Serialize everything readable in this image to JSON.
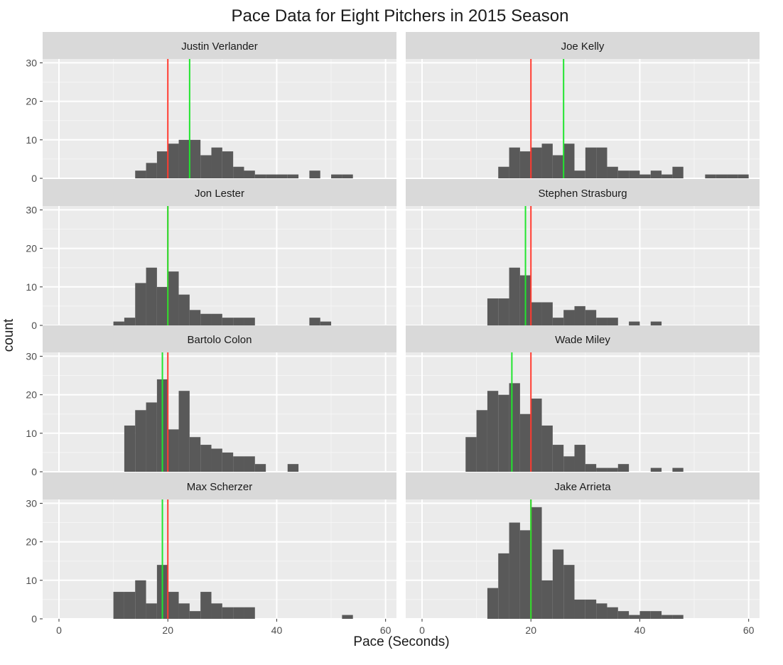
{
  "chart_data": {
    "type": "histogram",
    "title": "Pace Data for Eight Pitchers in 2015 Season",
    "xlabel": "Pace (Seconds)",
    "ylabel": "count",
    "xlim": [
      -3,
      62
    ],
    "ylim": [
      0,
      31
    ],
    "x_ticks": [
      0,
      20,
      40,
      60
    ],
    "y_ticks": [
      0,
      10,
      20,
      30
    ],
    "bin_width": 2,
    "line_colors": {
      "red": "#ff3b30",
      "green": "#22e52f"
    },
    "bar_color": "#595959",
    "facets": [
      {
        "name": "Justin Verlander",
        "red_line": 20,
        "green_line": 24,
        "bins": [
          [
            14,
            2
          ],
          [
            16,
            4
          ],
          [
            18,
            7
          ],
          [
            20,
            9
          ],
          [
            22,
            10
          ],
          [
            24,
            10
          ],
          [
            26,
            6
          ],
          [
            28,
            8
          ],
          [
            30,
            7
          ],
          [
            32,
            3
          ],
          [
            34,
            2
          ],
          [
            36,
            1
          ],
          [
            38,
            1
          ],
          [
            40,
            1
          ],
          [
            42,
            1
          ],
          [
            46,
            2
          ],
          [
            50,
            1
          ],
          [
            52,
            1
          ]
        ]
      },
      {
        "name": "Joe Kelly",
        "red_line": 20,
        "green_line": 26,
        "bins": [
          [
            14,
            3
          ],
          [
            16,
            8
          ],
          [
            18,
            7
          ],
          [
            20,
            8
          ],
          [
            22,
            9
          ],
          [
            24,
            6
          ],
          [
            26,
            9
          ],
          [
            28,
            2
          ],
          [
            30,
            8
          ],
          [
            32,
            8
          ],
          [
            34,
            3
          ],
          [
            36,
            2
          ],
          [
            38,
            2
          ],
          [
            40,
            1
          ],
          [
            42,
            2
          ],
          [
            44,
            1
          ],
          [
            46,
            3
          ],
          [
            52,
            1
          ],
          [
            54,
            1
          ],
          [
            56,
            1
          ],
          [
            58,
            1
          ]
        ]
      },
      {
        "name": "Jon Lester",
        "red_line": 20,
        "green_line": 20,
        "bins": [
          [
            10,
            1
          ],
          [
            12,
            2
          ],
          [
            14,
            11
          ],
          [
            16,
            15
          ],
          [
            18,
            10
          ],
          [
            20,
            14
          ],
          [
            22,
            8
          ],
          [
            24,
            4
          ],
          [
            26,
            3
          ],
          [
            28,
            3
          ],
          [
            30,
            2
          ],
          [
            32,
            2
          ],
          [
            34,
            2
          ],
          [
            46,
            2
          ],
          [
            48,
            1
          ]
        ]
      },
      {
        "name": "Stephen Strasburg",
        "red_line": 20,
        "green_line": 19,
        "bins": [
          [
            12,
            7
          ],
          [
            14,
            7
          ],
          [
            16,
            15
          ],
          [
            18,
            13
          ],
          [
            20,
            6
          ],
          [
            22,
            6
          ],
          [
            24,
            2
          ],
          [
            26,
            4
          ],
          [
            28,
            5
          ],
          [
            30,
            4
          ],
          [
            32,
            2
          ],
          [
            34,
            2
          ],
          [
            38,
            1
          ],
          [
            42,
            1
          ]
        ]
      },
      {
        "name": "Bartolo Colon",
        "red_line": 20,
        "green_line": 19,
        "bins": [
          [
            12,
            12
          ],
          [
            14,
            16
          ],
          [
            16,
            18
          ],
          [
            18,
            24
          ],
          [
            20,
            11
          ],
          [
            22,
            21
          ],
          [
            24,
            9
          ],
          [
            26,
            7
          ],
          [
            28,
            6
          ],
          [
            30,
            5
          ],
          [
            32,
            4
          ],
          [
            34,
            4
          ],
          [
            36,
            2
          ],
          [
            42,
            2
          ]
        ]
      },
      {
        "name": "Wade Miley",
        "red_line": 20,
        "green_line": 16.5,
        "bins": [
          [
            8,
            9
          ],
          [
            10,
            16
          ],
          [
            12,
            21
          ],
          [
            14,
            20
          ],
          [
            16,
            23
          ],
          [
            18,
            15
          ],
          [
            20,
            19
          ],
          [
            22,
            12
          ],
          [
            24,
            7
          ],
          [
            26,
            4
          ],
          [
            28,
            7
          ],
          [
            30,
            2
          ],
          [
            32,
            1
          ],
          [
            34,
            1
          ],
          [
            36,
            2
          ],
          [
            42,
            1
          ],
          [
            46,
            1
          ]
        ]
      },
      {
        "name": "Max Scherzer",
        "red_line": 20,
        "green_line": 19,
        "bins": [
          [
            10,
            7
          ],
          [
            12,
            7
          ],
          [
            14,
            10
          ],
          [
            16,
            4
          ],
          [
            18,
            14
          ],
          [
            20,
            7
          ],
          [
            22,
            4
          ],
          [
            24,
            2
          ],
          [
            26,
            7
          ],
          [
            28,
            4
          ],
          [
            30,
            3
          ],
          [
            32,
            3
          ],
          [
            34,
            3
          ],
          [
            52,
            1
          ]
        ]
      },
      {
        "name": "Jake Arrieta",
        "red_line": 20,
        "green_line": 20,
        "bins": [
          [
            12,
            8
          ],
          [
            14,
            17
          ],
          [
            16,
            25
          ],
          [
            18,
            23
          ],
          [
            20,
            29
          ],
          [
            22,
            10
          ],
          [
            24,
            18
          ],
          [
            26,
            14
          ],
          [
            28,
            5
          ],
          [
            30,
            5
          ],
          [
            32,
            4
          ],
          [
            34,
            3
          ],
          [
            36,
            2
          ],
          [
            38,
            1
          ],
          [
            40,
            2
          ],
          [
            42,
            2
          ],
          [
            44,
            1
          ],
          [
            46,
            1
          ]
        ]
      }
    ]
  }
}
